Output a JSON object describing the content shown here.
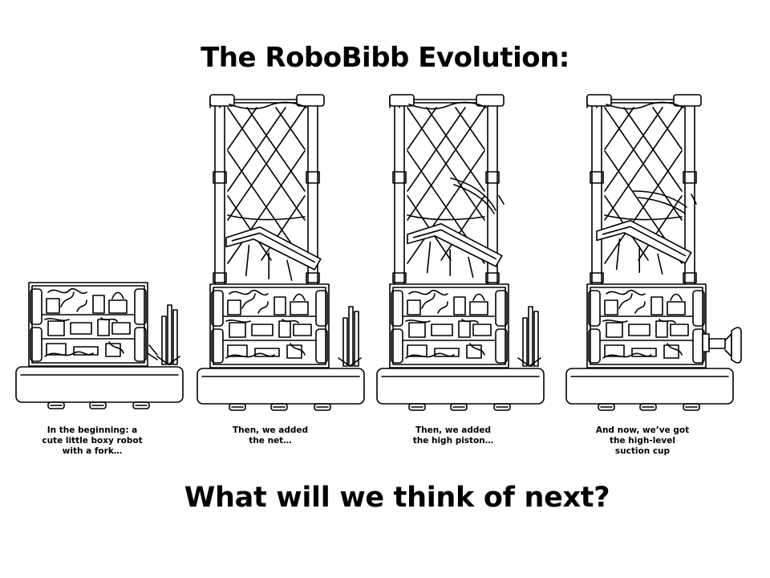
{
  "title": "The RoboBibb Evolution:",
  "footer": "What will we think of next?",
  "stages": [
    {
      "caption": "In the beginning: a\ncute little boxy robot\nwith a fork…",
      "robot": "boxy-robot-with-fork"
    },
    {
      "caption": "Then, we added\nthe  net…",
      "robot": "robot-with-net"
    },
    {
      "caption": "Then, we added\nthe high piston…",
      "robot": "robot-with-high-piston"
    },
    {
      "caption": "And now, we’ve got\nthe high-level\nsuction cup",
      "robot": "robot-with-suction-cup"
    }
  ]
}
